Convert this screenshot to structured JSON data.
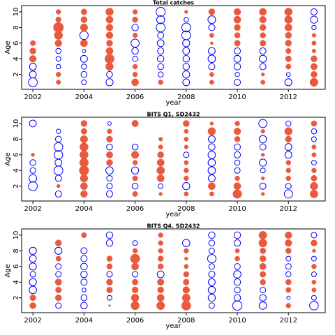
{
  "chart_data": [
    {
      "type": "bubble",
      "title": "Total catches",
      "xlabel": "year",
      "ylabel": "Age",
      "x": [
        2002,
        2003,
        2004,
        2005,
        2006,
        2007,
        2008,
        2009,
        2010,
        2011,
        2012,
        2013
      ],
      "ages": [
        1,
        2,
        3,
        4,
        5,
        6,
        7,
        8,
        9,
        10
      ],
      "values": [
        [
          -2,
          -1.2,
          -1.2,
          1.2,
          1,
          0.7,
          0,
          0,
          0,
          0
        ],
        [
          0.5,
          0.6,
          -0.5,
          -0.6,
          -0.7,
          1.2,
          1.8,
          2.6,
          0.8,
          0.6
        ],
        [
          -0.6,
          -0.9,
          -0.7,
          -1.2,
          -0.3,
          1.3,
          -1.8,
          1.4,
          1,
          0.9
        ],
        [
          -1.3,
          -0.9,
          1.5,
          2.2,
          1.3,
          1,
          1.2,
          1.2,
          1.3,
          1.5
        ],
        [
          1.3,
          0.6,
          0.6,
          -0.7,
          -1.1,
          -1.7,
          0.6,
          -1.1,
          0.8,
          0.6
        ],
        [
          0.6,
          -0.7,
          -0.9,
          -1.1,
          -1,
          -1.2,
          -1,
          -2,
          -1.6,
          -2.1
        ],
        [
          -1.2,
          -1.3,
          -1.1,
          -1.1,
          -1.2,
          -1.3,
          -2,
          -2,
          -0.5,
          0.3
        ],
        [
          0.5,
          0.5,
          -1,
          -1.4,
          -1.2,
          0.2,
          0.5,
          -1,
          -1.5,
          1
        ],
        [
          -1,
          -0.5,
          -1.1,
          -1.2,
          -1,
          0.9,
          0.8,
          1,
          1.3,
          1.2
        ],
        [
          0.5,
          0.3,
          -1,
          -1.3,
          -1,
          0.9,
          0.8,
          1,
          1.2,
          1.3
        ],
        [
          -1.3,
          -0.4,
          0.7,
          0.9,
          0.7,
          1,
          1,
          1.3,
          1.5,
          1.5
        ],
        [
          1.7,
          1,
          1.1,
          1,
          0.4,
          0.5,
          0.4,
          -0.5,
          -1.3,
          -1
        ]
      ],
      "positive_color": "#ea5a3f",
      "negative_color": "#0000ff",
      "xlim": [
        2001.56,
        2013.44
      ],
      "xticks": [
        2002,
        2004,
        2006,
        2008,
        2010,
        2012
      ],
      "ylim": [
        0.1,
        10.8
      ],
      "yticks": [
        2,
        4,
        6,
        8,
        10
      ]
    },
    {
      "type": "bubble",
      "title": "BITS Q1. SD2432",
      "xlabel": "year",
      "ylabel": "Age",
      "x": [
        2002,
        2003,
        2004,
        2005,
        2006,
        2007,
        2008,
        2009,
        2010,
        2011,
        2012,
        2013
      ],
      "ages": [
        1,
        2,
        3,
        4,
        5,
        6,
        7,
        8,
        9,
        10
      ],
      "values": [
        [
          0,
          -2,
          -1.5,
          -0.8,
          -0.9,
          0.3,
          0,
          0,
          0,
          -1.2
        ],
        [
          -1,
          0.3,
          -1,
          -2,
          -1.2,
          -1.8,
          -1.9,
          -0.9,
          -0.5,
          0
        ],
        [
          1.2,
          1.3,
          1.5,
          2.3,
          2,
          1.8,
          1.8,
          1.4,
          0.9,
          1
        ],
        [
          -1,
          -0.8,
          -0.8,
          -1.4,
          1,
          1.1,
          -0.9,
          1,
          0.6,
          -0.3
        ],
        [
          0.7,
          -0.9,
          0.7,
          -1.3,
          0.6,
          1.4,
          -0.9,
          0,
          0,
          1.1
        ],
        [
          0.3,
          -0.6,
          1.3,
          1.6,
          1.3,
          1,
          0.5,
          0.4,
          0,
          0
        ],
        [
          0.5,
          -1.3,
          0.6,
          0.6,
          0.5,
          -0.8,
          0.4,
          0.5,
          0.5,
          1
        ],
        [
          0.5,
          1.3,
          -1.2,
          -1.4,
          -1.4,
          -1.4,
          -1.1,
          -1.2,
          1.5,
          0.3
        ],
        [
          2,
          1.3,
          0.6,
          -0.8,
          -0.7,
          -1,
          -1,
          0.8,
          1.2,
          0.6
        ],
        [
          0.3,
          -1,
          0.3,
          -0.6,
          -1.3,
          0.3,
          -1,
          -1.4,
          0.4,
          -1.7
        ],
        [
          -1.7,
          -0.8,
          0.6,
          0.6,
          0.6,
          -1.2,
          -1.2,
          1,
          1.5,
          -0.7
        ],
        [
          1.6,
          1.5,
          0.9,
          0.6,
          -0.6,
          0.5,
          0.5,
          -0.6,
          -0.7,
          0.8
        ]
      ],
      "positive_color": "#ea5a3f",
      "negative_color": "#0000ff",
      "xlim": [
        2001.56,
        2013.44
      ],
      "xticks": [
        2002,
        2004,
        2006,
        2008,
        2010,
        2012
      ],
      "ylim": [
        0.1,
        10.8
      ],
      "yticks": [
        2,
        4,
        6,
        8,
        10
      ]
    },
    {
      "type": "bubble",
      "title": "BITS Q4. SD2432",
      "xlabel": "year",
      "ylabel": "Age",
      "x": [
        2002,
        2003,
        2004,
        2005,
        2006,
        2007,
        2008,
        2009,
        2010,
        2011,
        2012,
        2013
      ],
      "ages": [
        1,
        2,
        3,
        4,
        5,
        6,
        7,
        8,
        9,
        10
      ],
      "values": [
        [
          1,
          0.9,
          -1.4,
          -1.3,
          -0.8,
          -1.3,
          -1.2,
          -1.3,
          0,
          0
        ],
        [
          -0.8,
          1,
          0.9,
          1.1,
          -0.8,
          -0.8,
          0.7,
          -1.3,
          1,
          0
        ],
        [
          -1.1,
          -0.9,
          -0.4,
          -1,
          -1.1,
          -1.1,
          -1,
          -1,
          0,
          0.7
        ],
        [
          0.1,
          -0.6,
          0.9,
          1,
          -0.8,
          0.8,
          0.8,
          0,
          -1.1,
          -1.1
        ],
        [
          1.8,
          1.5,
          1,
          0.9,
          -0.8,
          1.3,
          2.2,
          0.6,
          -0.6,
          0
        ],
        [
          1.7,
          1.3,
          1,
          1.1,
          -1.2,
          0.8,
          0.8,
          0.6,
          0.6,
          0.6
        ],
        [
          2.2,
          1.6,
          1.2,
          0.9,
          0.8,
          0.5,
          0.3,
          0.6,
          -1.4,
          0
        ],
        [
          -0.8,
          -1.3,
          -1.3,
          -1.2,
          -1,
          -0.8,
          -1.8,
          -0.8,
          -0.9,
          -1.1
        ],
        [
          -2.2,
          -1.1,
          -0.9,
          -1.1,
          -1.4,
          -0.9,
          0.6,
          0.5,
          -1.1,
          -1.1
        ],
        [
          -1.4,
          -1.1,
          -0.8,
          0.8,
          0.9,
          1.1,
          1,
          0.9,
          1.7,
          1.6
        ],
        [
          0.6,
          -0.3,
          0.7,
          0.8,
          -0.7,
          -0.8,
          -0.6,
          0.8,
          1.2,
          1.2
        ],
        [
          -1.9,
          -0.6,
          0.5,
          0.5,
          -0.6,
          0.6,
          -0.6,
          0.3,
          1,
          -0.8
        ]
      ],
      "positive_color": "#ea5a3f",
      "negative_color": "#0000ff",
      "xlim": [
        2001.56,
        2013.44
      ],
      "xticks": [
        2002,
        2004,
        2006,
        2008,
        2010,
        2012
      ],
      "ylim": [
        0.1,
        10.8
      ],
      "yticks": [
        2,
        4,
        6,
        8,
        10
      ]
    }
  ]
}
